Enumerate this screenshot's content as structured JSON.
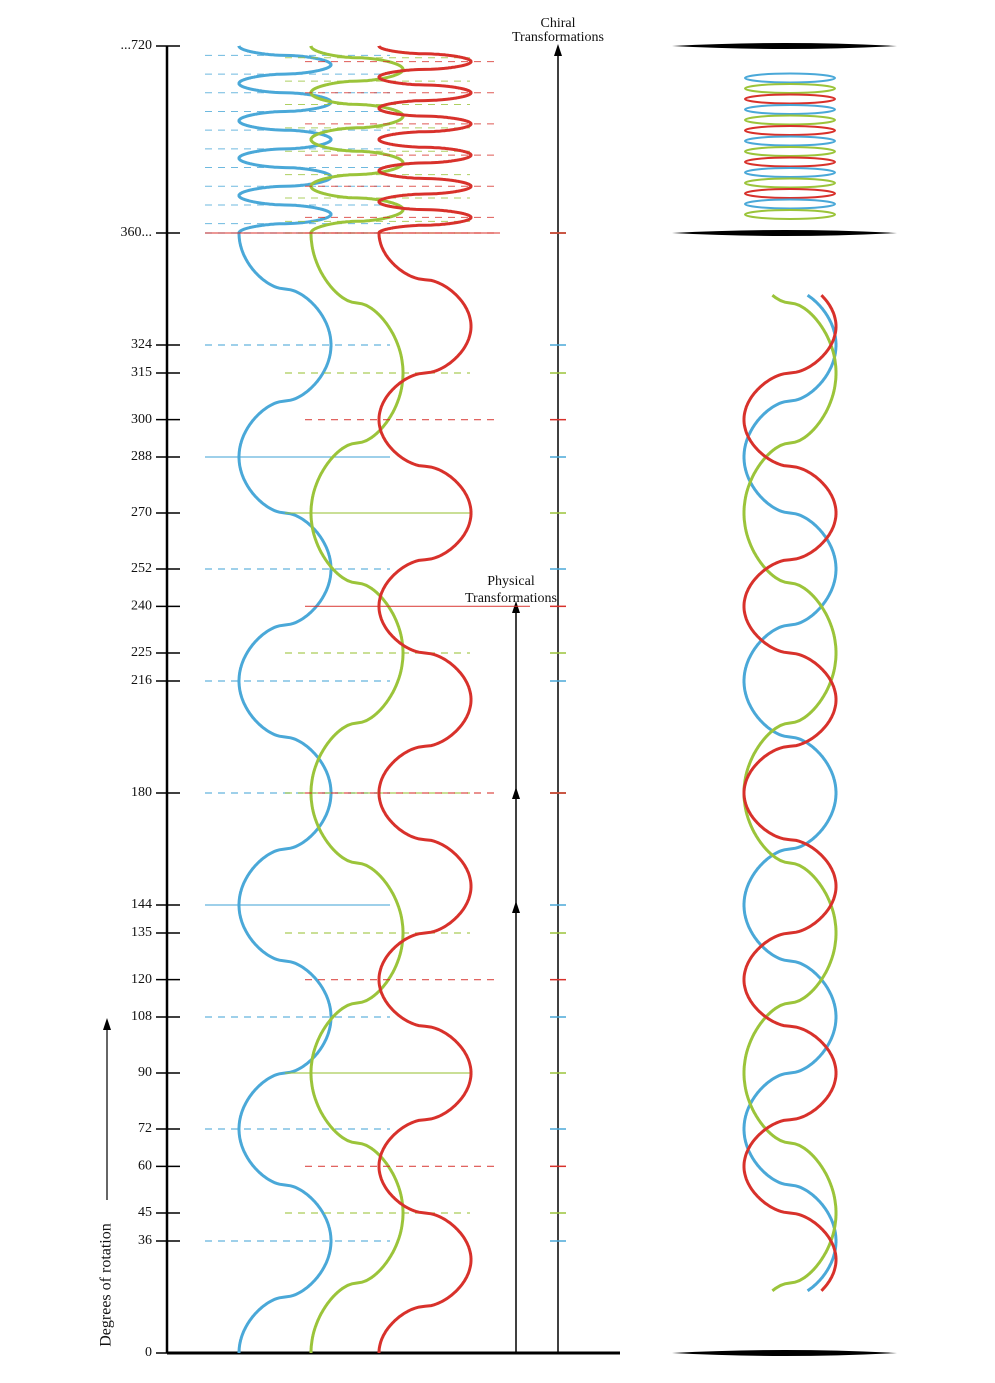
{
  "axis": {
    "label": "Degrees of rotation",
    "ticks": [
      0,
      36,
      45,
      60,
      72,
      90,
      108,
      120,
      135,
      144,
      180,
      216,
      225,
      240,
      252,
      270,
      288,
      300,
      315,
      324,
      {
        "value": 360,
        "label": "360..."
      },
      {
        "value": 720,
        "label": "...720"
      }
    ]
  },
  "annotations": {
    "chiral": [
      "Chiral",
      "Transformations"
    ],
    "physical": [
      "Physical",
      "Transformations"
    ]
  }
}
